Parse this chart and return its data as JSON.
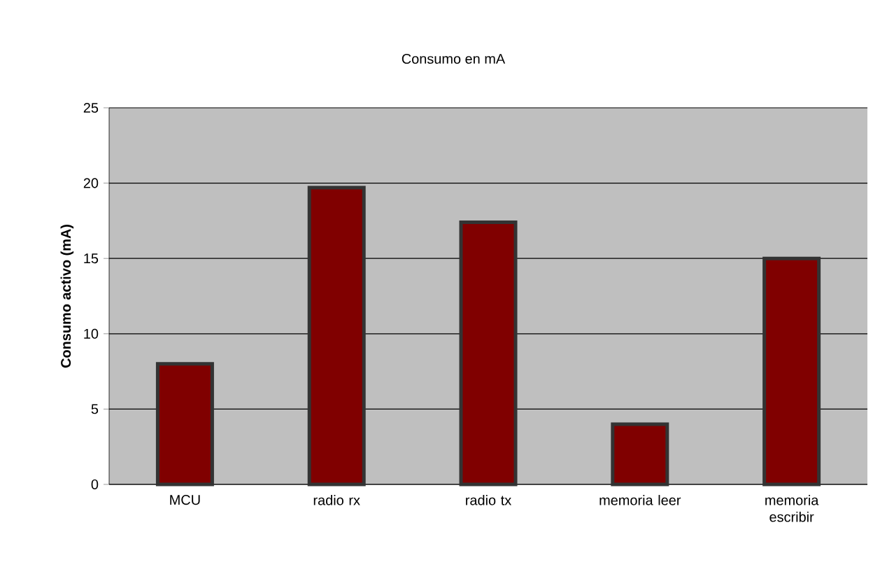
{
  "chart_data": {
    "type": "bar",
    "title": "Consumo en mA",
    "ylabel": "Consumo activo (mA)",
    "categories": [
      "MCU",
      "radio rx",
      "radio tx",
      "memoria leer",
      "memoria escribir"
    ],
    "values": [
      8,
      19.7,
      17.4,
      4,
      15
    ],
    "color": "#800000",
    "ylim": [
      0,
      25
    ],
    "yticks": [
      0,
      5,
      10,
      15,
      20,
      25
    ],
    "grid": "y"
  }
}
